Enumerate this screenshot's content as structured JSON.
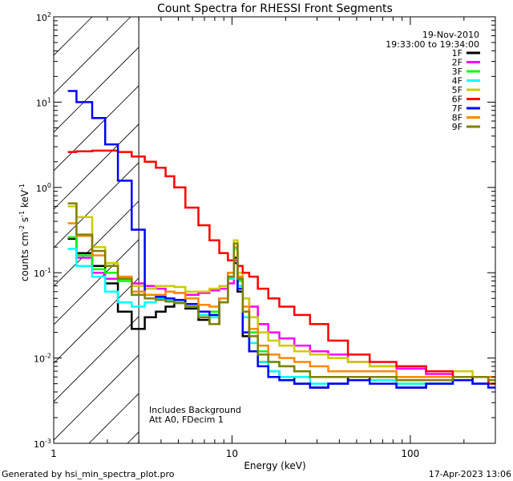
{
  "chart_data": {
    "type": "line",
    "title": "Count Spectra for RHESSI Front Segments",
    "date_label": "19-Nov-2010",
    "time_range_label": "19:33:00 to 19:34:00",
    "xlabel": "Energy (keV)",
    "ylabel_parts": [
      "counts cm",
      "-2",
      " s",
      "-1",
      " keV",
      "-1"
    ],
    "xscale": "log",
    "yscale": "log",
    "xlim": [
      1,
      300
    ],
    "ylim": [
      0.001,
      100
    ],
    "x_ticks": [
      {
        "value": 1,
        "label": "1"
      },
      {
        "value": 10,
        "label": "10"
      },
      {
        "value": 100,
        "label": "100"
      }
    ],
    "y_ticks": [
      {
        "value": 0.001,
        "base": "10",
        "exp": "-3"
      },
      {
        "value": 0.01,
        "base": "10",
        "exp": "-2"
      },
      {
        "value": 0.1,
        "base": "10",
        "exp": "-1"
      },
      {
        "value": 1,
        "base": "10",
        "exp": "0"
      },
      {
        "value": 10,
        "base": "10",
        "exp": "1"
      },
      {
        "value": 100,
        "base": "10",
        "exp": "2"
      }
    ],
    "hatched_region": {
      "x_from": 1,
      "x_to": 3
    },
    "annotations": [
      "Includes Background",
      "Att A0, FDecim 1"
    ],
    "legend_position": "top-right",
    "series": [
      {
        "name": "1F",
        "color": "#000000",
        "x": [
          1.2,
          1.5,
          1.8,
          2.1,
          2.5,
          3.0,
          3.5,
          4,
          4.5,
          5,
          6,
          7,
          8,
          9,
          10,
          10.5,
          11,
          12,
          13,
          15,
          17,
          20,
          25,
          30,
          40,
          50,
          70,
          100,
          150,
          200,
          250,
          300
        ],
        "y": [
          0.25,
          0.17,
          0.12,
          0.075,
          0.035,
          0.022,
          0.03,
          0.035,
          0.04,
          0.045,
          0.038,
          0.028,
          0.025,
          0.05,
          0.1,
          0.15,
          0.06,
          0.018,
          0.012,
          0.009,
          0.007,
          0.006,
          0.005,
          0.0045,
          0.005,
          0.006,
          0.0055,
          0.0045,
          0.005,
          0.006,
          0.005,
          0.005
        ]
      },
      {
        "name": "2F",
        "color": "#ff00ff",
        "x": [
          1.2,
          1.5,
          1.8,
          2.1,
          2.5,
          3.0,
          3.5,
          4,
          4.5,
          5,
          6,
          7,
          8,
          9,
          10,
          10.5,
          11,
          12,
          13,
          15,
          17,
          20,
          25,
          30,
          40,
          50,
          70,
          100,
          150,
          200,
          250,
          300
        ],
        "y": [
          0.26,
          0.15,
          0.1,
          0.085,
          0.085,
          0.075,
          0.07,
          0.065,
          0.06,
          0.058,
          0.055,
          0.058,
          0.062,
          0.065,
          0.075,
          0.14,
          0.09,
          0.05,
          0.04,
          0.025,
          0.02,
          0.017,
          0.014,
          0.012,
          0.011,
          0.009,
          0.008,
          0.0075,
          0.0065,
          0.0055,
          0.005,
          0.005
        ]
      },
      {
        "name": "3F",
        "color": "#00ff00",
        "x": [
          1.2,
          1.5,
          1.8,
          2.1,
          2.5,
          3.0,
          3.5,
          4,
          4.5,
          5,
          6,
          7,
          8,
          9,
          10,
          10.5,
          11,
          12,
          13,
          15,
          17,
          20,
          25,
          30,
          40,
          50,
          70,
          100,
          150,
          200,
          250,
          300
        ],
        "y": [
          0.26,
          0.16,
          0.11,
          0.1,
          0.08,
          0.06,
          0.055,
          0.05,
          0.048,
          0.045,
          0.04,
          0.035,
          0.035,
          0.045,
          0.09,
          0.2,
          0.08,
          0.035,
          0.02,
          0.012,
          0.009,
          0.008,
          0.007,
          0.006,
          0.006,
          0.006,
          0.006,
          0.005,
          0.005,
          0.006,
          0.006,
          0.005
        ]
      },
      {
        "name": "4F",
        "color": "#00ffff",
        "x": [
          1.2,
          1.5,
          1.8,
          2.1,
          2.5,
          3.0,
          3.5,
          4,
          4.5,
          5,
          6,
          7,
          8,
          9,
          10,
          10.5,
          11,
          12,
          13,
          15,
          17,
          20,
          25,
          30,
          40,
          50,
          70,
          100,
          150,
          200,
          250,
          300
        ],
        "y": [
          0.19,
          0.12,
          0.09,
          0.06,
          0.045,
          0.04,
          0.045,
          0.05,
          0.048,
          0.045,
          0.04,
          0.032,
          0.03,
          0.045,
          0.085,
          0.19,
          0.07,
          0.03,
          0.015,
          0.009,
          0.007,
          0.006,
          0.006,
          0.005,
          0.005,
          0.0055,
          0.0055,
          0.005,
          0.005,
          0.0055,
          0.005,
          0.005
        ]
      },
      {
        "name": "5F",
        "color": "#cccc00",
        "x": [
          1.2,
          1.5,
          1.8,
          2.1,
          2.5,
          3.0,
          3.5,
          4,
          4.5,
          5,
          6,
          7,
          8,
          9,
          10,
          10.5,
          11,
          12,
          13,
          15,
          17,
          20,
          25,
          30,
          40,
          50,
          70,
          100,
          150,
          200,
          250,
          300
        ],
        "y": [
          0.6,
          0.45,
          0.2,
          0.13,
          0.09,
          0.07,
          0.065,
          0.07,
          0.07,
          0.068,
          0.06,
          0.06,
          0.065,
          0.07,
          0.09,
          0.24,
          0.1,
          0.05,
          0.03,
          0.02,
          0.016,
          0.014,
          0.012,
          0.011,
          0.01,
          0.009,
          0.008,
          0.008,
          0.007,
          0.007,
          0.006,
          0.006
        ]
      },
      {
        "name": "6F",
        "color": "#ff0000",
        "x": [
          1.2,
          1.5,
          1.8,
          2.1,
          2.5,
          3.0,
          3.5,
          4,
          4.5,
          5,
          6,
          7,
          8,
          9,
          10,
          10.5,
          11,
          12,
          13,
          15,
          17,
          20,
          25,
          30,
          40,
          50,
          70,
          100,
          150,
          200,
          250,
          300
        ],
        "y": [
          2.6,
          2.65,
          2.7,
          2.7,
          2.6,
          2.3,
          2.0,
          1.7,
          1.35,
          1.0,
          0.58,
          0.36,
          0.24,
          0.17,
          0.14,
          0.13,
          0.12,
          0.1,
          0.09,
          0.065,
          0.05,
          0.04,
          0.032,
          0.025,
          0.016,
          0.011,
          0.009,
          0.008,
          0.007,
          0.006,
          0.006,
          0.005
        ]
      },
      {
        "name": "7F",
        "color": "#0000ff",
        "x": [
          1.2,
          1.5,
          1.8,
          2.1,
          2.5,
          3.0,
          3.5,
          4,
          4.5,
          5,
          6,
          7,
          8,
          9,
          10,
          10.5,
          11,
          12,
          13,
          15,
          17,
          20,
          25,
          30,
          40,
          50,
          70,
          100,
          150,
          200,
          250,
          300
        ],
        "y": [
          13.5,
          10.0,
          6.5,
          3.2,
          1.2,
          0.32,
          0.055,
          0.052,
          0.05,
          0.048,
          0.043,
          0.035,
          0.032,
          0.05,
          0.1,
          0.13,
          0.065,
          0.02,
          0.012,
          0.008,
          0.006,
          0.0055,
          0.005,
          0.0045,
          0.005,
          0.0055,
          0.005,
          0.0045,
          0.005,
          0.0055,
          0.005,
          0.0045
        ]
      },
      {
        "name": "8F",
        "color": "#ff8800",
        "x": [
          1.2,
          1.5,
          1.8,
          2.1,
          2.5,
          3.0,
          3.5,
          4,
          4.5,
          5,
          6,
          7,
          8,
          9,
          10,
          10.5,
          11,
          12,
          13,
          15,
          17,
          20,
          25,
          30,
          40,
          50,
          70,
          100,
          150,
          200,
          250,
          300
        ],
        "y": [
          0.38,
          0.27,
          0.16,
          0.12,
          0.09,
          0.06,
          0.055,
          0.055,
          0.06,
          0.058,
          0.05,
          0.042,
          0.04,
          0.05,
          0.1,
          0.2,
          0.09,
          0.04,
          0.022,
          0.014,
          0.011,
          0.01,
          0.009,
          0.008,
          0.007,
          0.007,
          0.007,
          0.006,
          0.006,
          0.006,
          0.006,
          0.006
        ]
      },
      {
        "name": "9F",
        "color": "#808000",
        "x": [
          1.2,
          1.5,
          1.8,
          2.1,
          2.5,
          3.0,
          3.5,
          4,
          4.5,
          5,
          6,
          7,
          8,
          9,
          10,
          10.5,
          11,
          12,
          13,
          15,
          17,
          20,
          25,
          30,
          40,
          50,
          70,
          100,
          150,
          200,
          250,
          300
        ],
        "y": [
          0.65,
          0.28,
          0.18,
          0.12,
          0.085,
          0.055,
          0.05,
          0.048,
          0.046,
          0.044,
          0.04,
          0.03,
          0.025,
          0.045,
          0.09,
          0.22,
          0.085,
          0.035,
          0.018,
          0.011,
          0.009,
          0.008,
          0.007,
          0.006,
          0.006,
          0.006,
          0.006,
          0.0055,
          0.0055,
          0.006,
          0.006,
          0.0055
        ]
      }
    ]
  },
  "footer": {
    "generator": "Generated by hsi_min_spectra_plot.pro",
    "timestamp": "17-Apr-2023 13:06"
  }
}
